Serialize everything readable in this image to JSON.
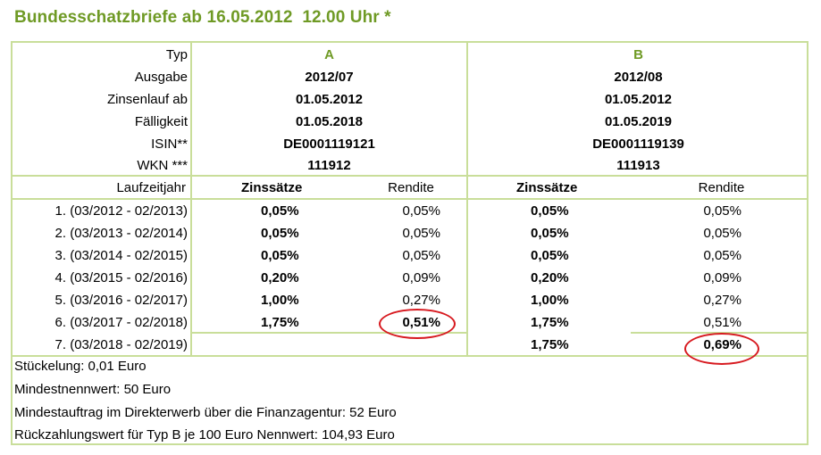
{
  "title": "Bundesschatzbriefe ab 16.05.2012  12.00 Uhr *",
  "header_rows": [
    {
      "label": "Typ",
      "a": "A",
      "b": "B"
    },
    {
      "label": "Ausgabe",
      "a": "2012/07",
      "b": "2012/08"
    },
    {
      "label": "Zinsenlauf ab",
      "a": "01.05.2012",
      "b": "01.05.2012"
    },
    {
      "label": "Fälligkeit",
      "a": "01.05.2018",
      "b": "01.05.2019"
    },
    {
      "label": "ISIN**",
      "a": "DE0001119121",
      "b": "DE0001119139"
    },
    {
      "label": "WKN ***",
      "a": "111912",
      "b": "111913"
    }
  ],
  "columns": {
    "laufzeitjahr": "Laufzeitjahr",
    "zinssaetze": "Zinssätze",
    "rendite": "Rendite"
  },
  "rows": [
    {
      "label": "1. (03/2012 - 02/2013)",
      "a_zins": "0,05%",
      "a_rendite": "0,05%",
      "b_zins": "0,05%",
      "b_rendite": "0,05%"
    },
    {
      "label": "2. (03/2013 - 02/2014)",
      "a_zins": "0,05%",
      "a_rendite": "0,05%",
      "b_zins": "0,05%",
      "b_rendite": "0,05%"
    },
    {
      "label": "3. (03/2014 - 02/2015)",
      "a_zins": "0,05%",
      "a_rendite": "0,05%",
      "b_zins": "0,05%",
      "b_rendite": "0,05%"
    },
    {
      "label": "4. (03/2015 - 02/2016)",
      "a_zins": "0,20%",
      "a_rendite": "0,09%",
      "b_zins": "0,20%",
      "b_rendite": "0,09%"
    },
    {
      "label": "5. (03/2016 - 02/2017)",
      "a_zins": "1,00%",
      "a_rendite": "0,27%",
      "b_zins": "1,00%",
      "b_rendite": "0,27%"
    },
    {
      "label": "6. (03/2017 - 02/2018)",
      "a_zins": "1,75%",
      "a_rendite": "0,51%",
      "b_zins": "1,75%",
      "b_rendite": "0,51%"
    },
    {
      "label": "7. (03/2018 - 02/2019)",
      "a_zins": "",
      "a_rendite": "",
      "b_zins": "1,75%",
      "b_rendite": "0,69%"
    }
  ],
  "notes": [
    "Stückelung: 0,01 Euro",
    "Mindestnennwert: 50 Euro",
    "Mindestauftrag im Direkterwerb über die Finanzagentur: 52 Euro",
    "Rückzahlungswert für Typ B je 100 Euro Nennwert: 104,93 Euro"
  ],
  "colors": {
    "accent": "#6f9a25",
    "border": "#c9de9a",
    "highlight": "#d7191f"
  }
}
